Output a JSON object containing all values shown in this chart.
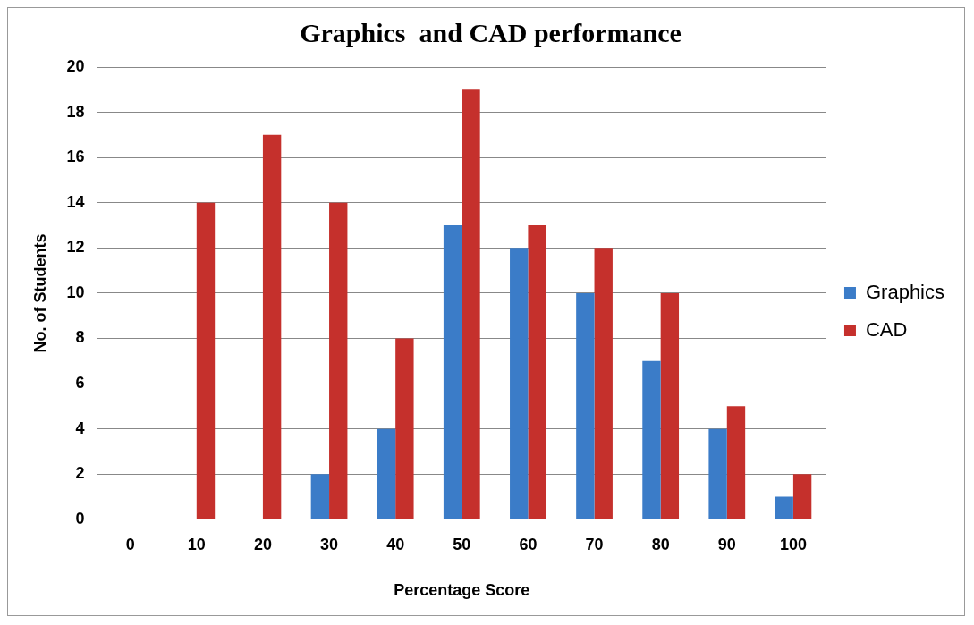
{
  "chart_data": {
    "type": "bar",
    "title": "Graphics  and CAD performance",
    "xlabel": "Percentage Score",
    "ylabel": "No. of Students",
    "categories": [
      "0",
      "10",
      "20",
      "30",
      "40",
      "50",
      "60",
      "70",
      "80",
      "90",
      "100"
    ],
    "series": [
      {
        "name": "Graphics",
        "color": "#3b7cc8",
        "values": [
          0,
          0,
          0,
          2,
          4,
          13,
          12,
          10,
          7,
          4,
          1
        ]
      },
      {
        "name": "CAD",
        "color": "#c5302c",
        "values": [
          0,
          14,
          17,
          14,
          8,
          19,
          13,
          12,
          10,
          5,
          2
        ]
      }
    ],
    "ylim": [
      0,
      20
    ],
    "yticks": [
      0,
      2,
      4,
      6,
      8,
      10,
      12,
      14,
      16,
      18,
      20
    ],
    "grid": "y",
    "legend": "right"
  }
}
